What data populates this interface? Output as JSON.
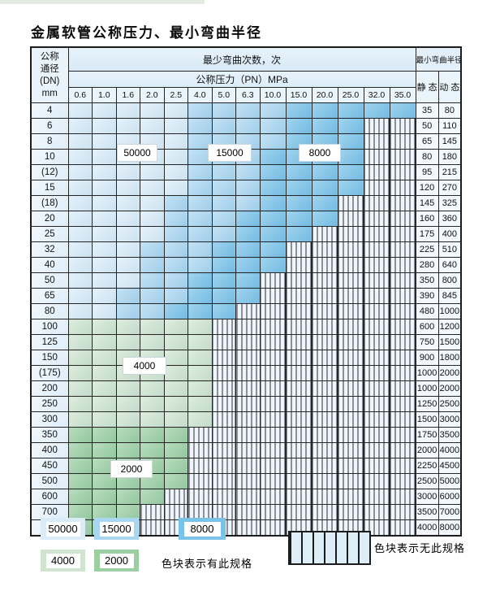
{
  "page": {
    "title": "金属软管公称压力、最小弯曲半径"
  },
  "colors": {
    "c50000": "#d9ecf8",
    "c15000": "#a9d6f0",
    "c8000": "#79c2e8",
    "c4000": "#cfe5cf",
    "c2000": "#9bcfa1"
  },
  "table": {
    "corner": [
      "公称",
      "通径",
      "(DN)",
      "mm"
    ],
    "bend_header": "最少弯曲次数，次",
    "pn_header": "公称压力（PN）MPa",
    "radius_header": "最小弯曲半径",
    "static_label": "静 态",
    "dynamic_label": "动 态",
    "pressures": [
      "0.6",
      "1.0",
      "1.6",
      "2.0",
      "2.5",
      "4.0",
      "5.0",
      "6.3",
      "10.0",
      "15.0",
      "20.0",
      "25.0",
      "32.0",
      "35.0"
    ],
    "rows": [
      {
        "dn": "4",
        "static": "35",
        "dynamic": "80",
        "segments": [
          [
            "c50000",
            5
          ],
          [
            "c15000",
            9
          ],
          [
            "c8000",
            14
          ]
        ]
      },
      {
        "dn": "6",
        "static": "50",
        "dynamic": "110",
        "segments": [
          [
            "c50000",
            5
          ],
          [
            "c15000",
            9
          ],
          [
            "c8000",
            12
          ]
        ]
      },
      {
        "dn": "8",
        "static": "65",
        "dynamic": "145",
        "segments": [
          [
            "c50000",
            5
          ],
          [
            "c15000",
            9
          ],
          [
            "c8000",
            12
          ]
        ]
      },
      {
        "dn": "10",
        "static": "80",
        "dynamic": "180",
        "segments": [
          [
            "c50000",
            5
          ],
          [
            "c15000",
            8
          ],
          [
            "c8000",
            12
          ]
        ]
      },
      {
        "dn": "(12)",
        "static": "95",
        "dynamic": "215",
        "segments": [
          [
            "c50000",
            5
          ],
          [
            "c15000",
            8
          ],
          [
            "c8000",
            12
          ]
        ]
      },
      {
        "dn": "15",
        "static": "120",
        "dynamic": "270",
        "segments": [
          [
            "c50000",
            5
          ],
          [
            "c15000",
            8
          ],
          [
            "c8000",
            12
          ]
        ]
      },
      {
        "dn": "(18)",
        "static": "145",
        "dynamic": "325",
        "segments": [
          [
            "c50000",
            4
          ],
          [
            "c15000",
            8
          ],
          [
            "c8000",
            11
          ]
        ]
      },
      {
        "dn": "20",
        "static": "160",
        "dynamic": "360",
        "segments": [
          [
            "c50000",
            4
          ],
          [
            "c15000",
            7
          ],
          [
            "c8000",
            11
          ]
        ]
      },
      {
        "dn": "25",
        "static": "175",
        "dynamic": "400",
        "segments": [
          [
            "c50000",
            4
          ],
          [
            "c15000",
            7
          ],
          [
            "c8000",
            10
          ]
        ]
      },
      {
        "dn": "32",
        "static": "225",
        "dynamic": "510",
        "segments": [
          [
            "c50000",
            3
          ],
          [
            "c15000",
            6
          ],
          [
            "c8000",
            9
          ]
        ]
      },
      {
        "dn": "40",
        "static": "280",
        "dynamic": "640",
        "segments": [
          [
            "c50000",
            3
          ],
          [
            "c15000",
            6
          ],
          [
            "c8000",
            9
          ]
        ]
      },
      {
        "dn": "50",
        "static": "350",
        "dynamic": "800",
        "segments": [
          [
            "c50000",
            3
          ],
          [
            "c15000",
            5
          ],
          [
            "c8000",
            8
          ]
        ]
      },
      {
        "dn": "65",
        "static": "390",
        "dynamic": "845",
        "segments": [
          [
            "c50000",
            2
          ],
          [
            "c15000",
            5
          ],
          [
            "c8000",
            8
          ]
        ]
      },
      {
        "dn": "80",
        "static": "480",
        "dynamic": "1000",
        "segments": [
          [
            "c50000",
            2
          ],
          [
            "c15000",
            4
          ],
          [
            "c8000",
            7
          ]
        ]
      },
      {
        "dn": "100",
        "static": "600",
        "dynamic": "1200",
        "segments": [
          [
            "c4000",
            6
          ]
        ]
      },
      {
        "dn": "125",
        "static": "750",
        "dynamic": "1500",
        "segments": [
          [
            "c4000",
            6
          ]
        ]
      },
      {
        "dn": "150",
        "static": "900",
        "dynamic": "1800",
        "segments": [
          [
            "c4000",
            6
          ]
        ]
      },
      {
        "dn": "(175)",
        "static": "1000",
        "dynamic": "2000",
        "segments": [
          [
            "c4000",
            6
          ]
        ]
      },
      {
        "dn": "200",
        "static": "1000",
        "dynamic": "2000",
        "segments": [
          [
            "c4000",
            6
          ]
        ]
      },
      {
        "dn": "250",
        "static": "1250",
        "dynamic": "2500",
        "segments": [
          [
            "c4000",
            6
          ]
        ]
      },
      {
        "dn": "300",
        "static": "1500",
        "dynamic": "3000",
        "segments": [
          [
            "c4000",
            6
          ]
        ]
      },
      {
        "dn": "350",
        "static": "1750",
        "dynamic": "3500",
        "segments": [
          [
            "c2000",
            5
          ]
        ]
      },
      {
        "dn": "400",
        "static": "2000",
        "dynamic": "4000",
        "segments": [
          [
            "c2000",
            5
          ]
        ]
      },
      {
        "dn": "450",
        "static": "2250",
        "dynamic": "4500",
        "segments": [
          [
            "c2000",
            5
          ]
        ]
      },
      {
        "dn": "500",
        "static": "2500",
        "dynamic": "5000",
        "segments": [
          [
            "c2000",
            5
          ]
        ]
      },
      {
        "dn": "600",
        "static": "3000",
        "dynamic": "6000",
        "segments": [
          [
            "c2000",
            4
          ]
        ]
      },
      {
        "dn": "700",
        "static": "3500",
        "dynamic": "7000",
        "segments": [
          [
            "c2000",
            3
          ]
        ]
      },
      {
        "dn": "800",
        "static": "4000",
        "dynamic": "8000",
        "segments": [
          [
            "c2000",
            3
          ]
        ]
      }
    ]
  },
  "overlays": {
    "l50000": "50000",
    "l15000": "15000",
    "l8000": "8000",
    "l4000": "4000",
    "l2000": "2000"
  },
  "legend": {
    "swatches": [
      {
        "label": "50000",
        "color_key": "c50000"
      },
      {
        "label": "15000",
        "color_key": "c15000"
      },
      {
        "label": "8000",
        "color_key": "c8000"
      },
      {
        "label": "4000",
        "color_key": "c4000"
      },
      {
        "label": "2000",
        "color_key": "c2000"
      }
    ],
    "has_spec_note": "色块表示有此规格",
    "no_spec_note": "色块表示无此规格"
  }
}
